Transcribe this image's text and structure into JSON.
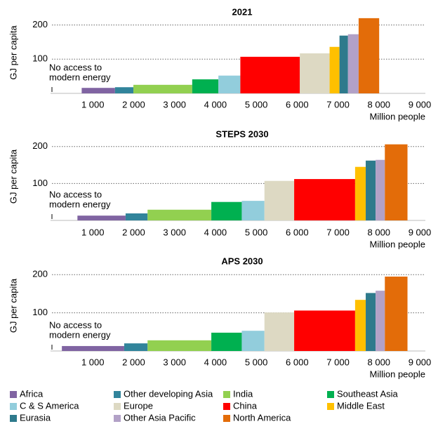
{
  "legend": [
    {
      "name": "Africa",
      "color": "#8064a2"
    },
    {
      "name": "Other developing Asia",
      "color": "#31849b"
    },
    {
      "name": "India",
      "color": "#92d050"
    },
    {
      "name": "Southeast Asia",
      "color": "#00b050"
    },
    {
      "name": "C & S America",
      "color": "#92cddc"
    },
    {
      "name": "Europe",
      "color": "#ddd9c3"
    },
    {
      "name": "China",
      "color": "#ff0000"
    },
    {
      "name": "Middle East",
      "color": "#ffc000"
    },
    {
      "name": "Eurasia",
      "color": "#2e7a8c"
    },
    {
      "name": "Other Asia Pacific",
      "color": "#b2a1c7"
    },
    {
      "name": "North America",
      "color": "#e36c09"
    }
  ],
  "chart_data": [
    {
      "type": "bar",
      "title": "2021",
      "y_label": "GJ per capita",
      "x_label": "Million people",
      "annotation": [
        "No access to",
        "modern energy"
      ],
      "xlim": [
        0,
        9000
      ],
      "ylim": [
        0,
        230
      ],
      "yticks": [
        100,
        200
      ],
      "grid": true,
      "xticks": [
        {
          "value": 1000,
          "label": "1 000"
        },
        {
          "value": 2000,
          "label": "2 000"
        },
        {
          "value": 3000,
          "label": "3 000"
        },
        {
          "value": 4000,
          "label": "4 000"
        },
        {
          "value": 5000,
          "label": "5 000"
        },
        {
          "value": 6000,
          "label": "6 000"
        },
        {
          "value": 7000,
          "label": "7 000"
        },
        {
          "value": 8000,
          "label": "8 000"
        },
        {
          "value": 9000,
          "label": "9 000"
        }
      ],
      "bars": [
        {
          "name": "Africa",
          "x": [
            728,
            1543
          ],
          "value": 16
        },
        {
          "name": "Other developing Asia",
          "x": [
            1543,
            1993
          ],
          "value": 18
        },
        {
          "name": "India",
          "x": [
            1993,
            3432
          ],
          "value": 25
        },
        {
          "name": "Southeast Asia",
          "x": [
            3432,
            4073
          ],
          "value": 41
        },
        {
          "name": "C & S America",
          "x": [
            4073,
            4610
          ],
          "value": 52
        },
        {
          "name": "China",
          "x": [
            4610,
            6066
          ],
          "value": 107
        },
        {
          "name": "Europe",
          "x": [
            6066,
            6794
          ],
          "value": 117
        },
        {
          "name": "Middle East",
          "x": [
            6794,
            7036
          ],
          "value": 136
        },
        {
          "name": "Eurasia",
          "x": [
            7036,
            7244
          ],
          "value": 169
        },
        {
          "name": "Other Asia Pacific",
          "x": [
            7244,
            7504
          ],
          "value": 173
        },
        {
          "name": "North America",
          "x": [
            7504,
            8007
          ],
          "value": 220
        }
      ]
    },
    {
      "type": "bar",
      "title": "STEPS 2030",
      "y_label": "GJ per capita",
      "x_label": "Million people",
      "annotation": [
        "No access to",
        "modern energy"
      ],
      "xlim": [
        0,
        9000
      ],
      "ylim": [
        0,
        230
      ],
      "yticks": [
        100,
        200
      ],
      "grid": true,
      "xticks": [
        {
          "value": 1000,
          "label": "1 000"
        },
        {
          "value": 2000,
          "label": "2 000"
        },
        {
          "value": 3000,
          "label": "3 000"
        },
        {
          "value": 4000,
          "label": "4 000"
        },
        {
          "value": 5000,
          "label": "5 000"
        },
        {
          "value": 6000,
          "label": "6 000"
        },
        {
          "value": 7000,
          "label": "7 000"
        },
        {
          "value": 8000,
          "label": "8 000"
        },
        {
          "value": 9000,
          "label": "9 000"
        }
      ],
      "bars": [
        {
          "name": "Africa",
          "x": [
            624,
            1802
          ],
          "value": 13
        },
        {
          "name": "Other developing Asia",
          "x": [
            1802,
            2340
          ],
          "value": 19
        },
        {
          "name": "India",
          "x": [
            2340,
            3900
          ],
          "value": 29
        },
        {
          "name": "Southeast Asia",
          "x": [
            3900,
            4645
          ],
          "value": 50
        },
        {
          "name": "C & S America",
          "x": [
            4645,
            5200
          ],
          "value": 53
        },
        {
          "name": "Europe",
          "x": [
            5200,
            5927
          ],
          "value": 107
        },
        {
          "name": "China",
          "x": [
            5927,
            7418
          ],
          "value": 112
        },
        {
          "name": "Middle East",
          "x": [
            7418,
            7678
          ],
          "value": 145
        },
        {
          "name": "Eurasia",
          "x": [
            7678,
            7920
          ],
          "value": 162
        },
        {
          "name": "Other Asia Pacific",
          "x": [
            7920,
            8146
          ],
          "value": 164
        },
        {
          "name": "North America",
          "x": [
            8146,
            8700
          ],
          "value": 206
        }
      ]
    },
    {
      "type": "bar",
      "title": "APS 2030",
      "y_label": "GJ per capita",
      "x_label": "Million people",
      "annotation": [
        "No access to",
        "modern energy"
      ],
      "xlim": [
        0,
        9000
      ],
      "ylim": [
        0,
        230
      ],
      "yticks": [
        100,
        200
      ],
      "grid": true,
      "xticks": [
        {
          "value": 1000,
          "label": "1 000"
        },
        {
          "value": 2000,
          "label": "2 000"
        },
        {
          "value": 3000,
          "label": "3 000"
        },
        {
          "value": 4000,
          "label": "4 000"
        },
        {
          "value": 5000,
          "label": "5 000"
        },
        {
          "value": 6000,
          "label": "6 000"
        },
        {
          "value": 7000,
          "label": "7 000"
        },
        {
          "value": 8000,
          "label": "8 000"
        },
        {
          "value": 9000,
          "label": "9 000"
        }
      ],
      "bars": [
        {
          "name": "Africa",
          "x": [
            243,
            1768
          ],
          "value": 13
        },
        {
          "name": "Other developing Asia",
          "x": [
            1768,
            2340
          ],
          "value": 20
        },
        {
          "name": "India",
          "x": [
            2340,
            3900
          ],
          "value": 28
        },
        {
          "name": "Southeast Asia",
          "x": [
            3900,
            4645
          ],
          "value": 48
        },
        {
          "name": "C & S America",
          "x": [
            4645,
            5200
          ],
          "value": 53
        },
        {
          "name": "Europe",
          "x": [
            5200,
            5927
          ],
          "value": 101
        },
        {
          "name": "China",
          "x": [
            5927,
            7418
          ],
          "value": 106
        },
        {
          "name": "Middle East",
          "x": [
            7418,
            7678
          ],
          "value": 134
        },
        {
          "name": "Eurasia",
          "x": [
            7678,
            7920
          ],
          "value": 152
        },
        {
          "name": "Other Asia Pacific",
          "x": [
            7920,
            8146
          ],
          "value": 158
        },
        {
          "name": "North America",
          "x": [
            8146,
            8700
          ],
          "value": 195
        }
      ]
    }
  ]
}
